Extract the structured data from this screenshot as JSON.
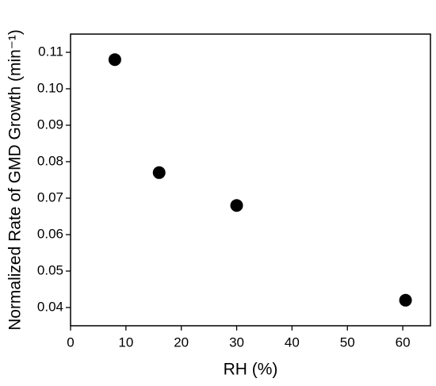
{
  "chart_data": {
    "type": "scatter",
    "x_label": "RH (%)",
    "y_label": "Normalized Rate of GMD Growth (min⁻¹)",
    "x": [
      8,
      16,
      30,
      60.5
    ],
    "values": [
      0.108,
      0.077,
      0.068,
      0.042
    ],
    "color": "#000000",
    "xlim": [
      0,
      65
    ],
    "xticks": [
      0,
      10,
      20,
      30,
      40,
      50,
      60
    ],
    "ylim": [
      0.035,
      0.115
    ],
    "yticks": [
      0.04,
      0.05,
      0.06,
      0.07,
      0.08,
      0.09,
      {
        "value": 0.1,
        "label": "0.10"
      },
      0.11
    ],
    "grid": false
  }
}
